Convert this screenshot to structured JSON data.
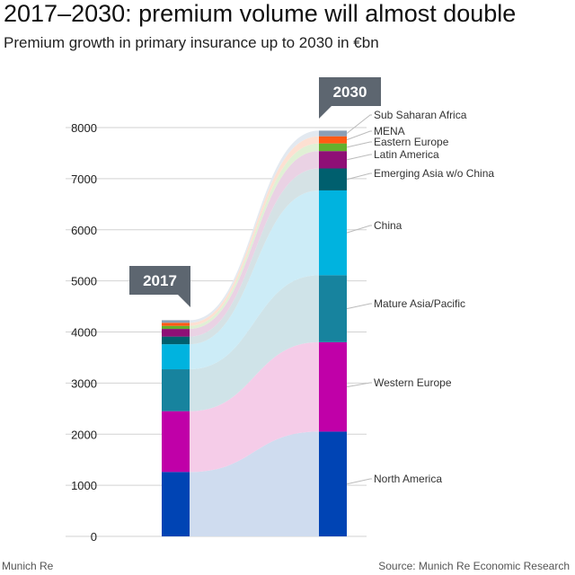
{
  "header": {
    "title": "2017–2030: premium volume will almost double",
    "subtitle": "Premium growth in primary insurance up to 2030 in €bn"
  },
  "footer": {
    "left": "Munich Re",
    "right": "Source: Munich Re Economic Research"
  },
  "chart_data": {
    "type": "bar",
    "stacked": true,
    "categories": [
      "2017",
      "2030"
    ],
    "ylim": [
      0,
      8000
    ],
    "yticks": [
      0,
      1000,
      2000,
      3000,
      4000,
      5000,
      6000,
      7000,
      8000
    ],
    "grid": true,
    "series": [
      {
        "name": "North America",
        "values": [
          1260,
          2050
        ],
        "color": "#0044b4",
        "flow": "#cfdcef"
      },
      {
        "name": "Western Europe",
        "values": [
          1190,
          1750
        ],
        "color": "#c000a8",
        "flow": "#f5cce8"
      },
      {
        "name": "Mature Asia/Pacific",
        "values": [
          820,
          1310
        ],
        "color": "#17839e",
        "flow": "#cfe3e8"
      },
      {
        "name": "China",
        "values": [
          490,
          1660
        ],
        "color": "#00b3df",
        "flow": "#ccecf7"
      },
      {
        "name": "Emerging Asia w/o China",
        "values": [
          150,
          430
        ],
        "color": "#005f6e",
        "flow": "#d5e2e5"
      },
      {
        "name": "Latin America",
        "values": [
          150,
          340
        ],
        "color": "#8f0f76",
        "flow": "#ead2e4"
      },
      {
        "name": "Eastern Europe",
        "values": [
          60,
          150
        ],
        "color": "#63b02d",
        "flow": "#e0f0d5"
      },
      {
        "name": "MENA",
        "values": [
          60,
          140
        ],
        "color": "#ff5a14",
        "flow": "#fde0d2"
      },
      {
        "name": "Sub Saharan Africa",
        "values": [
          50,
          110
        ],
        "color": "#8a9fb6",
        "flow": "#e3e9f0"
      }
    ],
    "callouts": [
      "2017",
      "2030"
    ]
  }
}
